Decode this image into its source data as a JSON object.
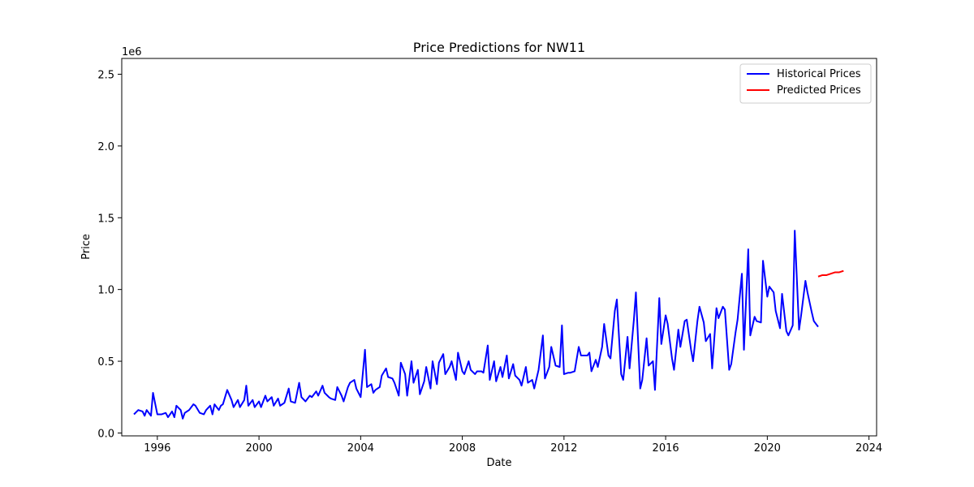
{
  "chart_data": {
    "type": "line",
    "title": "Price Predictions for NW11",
    "xlabel": "Date",
    "ylabel": "Price",
    "y_multiplier_label": "1e6",
    "xlim": [
      1994.6,
      2024.3
    ],
    "ylim": [
      -0.02,
      2.61
    ],
    "x_ticks": [
      1996,
      2000,
      2004,
      2008,
      2012,
      2016,
      2020,
      2024
    ],
    "x_tick_labels": [
      "1996",
      "2000",
      "2004",
      "2008",
      "2012",
      "2016",
      "2020",
      "2024"
    ],
    "y_ticks": [
      0.0,
      0.5,
      1.0,
      1.5,
      2.0,
      2.5
    ],
    "y_tick_labels": [
      "0.0",
      "0.5",
      "1.0",
      "1.5",
      "2.0",
      "2.5"
    ],
    "grid": false,
    "legend_position": "top-right",
    "series": [
      {
        "name": "Historical Prices",
        "color": "#0000ff",
        "points": [
          [
            1995.08,
            0.13
          ],
          [
            1995.25,
            0.16
          ],
          [
            1995.42,
            0.15
          ],
          [
            1995.5,
            0.12
          ],
          [
            1995.58,
            0.16
          ],
          [
            1995.75,
            0.12
          ],
          [
            1995.83,
            0.28
          ],
          [
            1995.92,
            0.2
          ],
          [
            1996.0,
            0.13
          ],
          [
            1996.17,
            0.13
          ],
          [
            1996.33,
            0.14
          ],
          [
            1996.42,
            0.11
          ],
          [
            1996.58,
            0.15
          ],
          [
            1996.67,
            0.11
          ],
          [
            1996.75,
            0.19
          ],
          [
            1996.92,
            0.16
          ],
          [
            1997.0,
            0.1
          ],
          [
            1997.08,
            0.14
          ],
          [
            1997.25,
            0.16
          ],
          [
            1997.42,
            0.2
          ],
          [
            1997.5,
            0.19
          ],
          [
            1997.67,
            0.14
          ],
          [
            1997.83,
            0.13
          ],
          [
            1997.92,
            0.16
          ],
          [
            1998.08,
            0.19
          ],
          [
            1998.17,
            0.13
          ],
          [
            1998.25,
            0.2
          ],
          [
            1998.42,
            0.16
          ],
          [
            1998.5,
            0.19
          ],
          [
            1998.58,
            0.2
          ],
          [
            1998.75,
            0.3
          ],
          [
            1998.92,
            0.23
          ],
          [
            1999.0,
            0.18
          ],
          [
            1999.17,
            0.23
          ],
          [
            1999.25,
            0.18
          ],
          [
            1999.42,
            0.23
          ],
          [
            1999.5,
            0.33
          ],
          [
            1999.58,
            0.19
          ],
          [
            1999.75,
            0.23
          ],
          [
            1999.83,
            0.18
          ],
          [
            2000.0,
            0.22
          ],
          [
            2000.08,
            0.18
          ],
          [
            2000.25,
            0.26
          ],
          [
            2000.33,
            0.22
          ],
          [
            2000.5,
            0.25
          ],
          [
            2000.58,
            0.19
          ],
          [
            2000.75,
            0.24
          ],
          [
            2000.83,
            0.19
          ],
          [
            2001.0,
            0.21
          ],
          [
            2001.17,
            0.31
          ],
          [
            2001.25,
            0.22
          ],
          [
            2001.42,
            0.21
          ],
          [
            2001.58,
            0.35
          ],
          [
            2001.67,
            0.25
          ],
          [
            2001.83,
            0.22
          ],
          [
            2002.0,
            0.26
          ],
          [
            2002.08,
            0.25
          ],
          [
            2002.25,
            0.29
          ],
          [
            2002.33,
            0.26
          ],
          [
            2002.5,
            0.33
          ],
          [
            2002.58,
            0.28
          ],
          [
            2002.75,
            0.25
          ],
          [
            2002.83,
            0.24
          ],
          [
            2003.0,
            0.23
          ],
          [
            2003.08,
            0.32
          ],
          [
            2003.25,
            0.26
          ],
          [
            2003.33,
            0.22
          ],
          [
            2003.5,
            0.32
          ],
          [
            2003.58,
            0.35
          ],
          [
            2003.75,
            0.37
          ],
          [
            2003.83,
            0.31
          ],
          [
            2004.0,
            0.25
          ],
          [
            2004.17,
            0.58
          ],
          [
            2004.25,
            0.32
          ],
          [
            2004.42,
            0.34
          ],
          [
            2004.5,
            0.28
          ],
          [
            2004.58,
            0.3
          ],
          [
            2004.75,
            0.32
          ],
          [
            2004.83,
            0.4
          ],
          [
            2005.0,
            0.45
          ],
          [
            2005.08,
            0.39
          ],
          [
            2005.25,
            0.38
          ],
          [
            2005.33,
            0.35
          ],
          [
            2005.5,
            0.26
          ],
          [
            2005.58,
            0.49
          ],
          [
            2005.75,
            0.41
          ],
          [
            2005.83,
            0.26
          ],
          [
            2006.0,
            0.5
          ],
          [
            2006.08,
            0.35
          ],
          [
            2006.25,
            0.44
          ],
          [
            2006.33,
            0.27
          ],
          [
            2006.5,
            0.36
          ],
          [
            2006.58,
            0.46
          ],
          [
            2006.75,
            0.31
          ],
          [
            2006.83,
            0.5
          ],
          [
            2007.0,
            0.34
          ],
          [
            2007.08,
            0.49
          ],
          [
            2007.25,
            0.55
          ],
          [
            2007.33,
            0.41
          ],
          [
            2007.5,
            0.46
          ],
          [
            2007.58,
            0.5
          ],
          [
            2007.75,
            0.37
          ],
          [
            2007.83,
            0.56
          ],
          [
            2008.0,
            0.43
          ],
          [
            2008.08,
            0.41
          ],
          [
            2008.25,
            0.5
          ],
          [
            2008.33,
            0.44
          ],
          [
            2008.5,
            0.41
          ],
          [
            2008.58,
            0.43
          ],
          [
            2008.75,
            0.43
          ],
          [
            2008.83,
            0.42
          ],
          [
            2009.0,
            0.61
          ],
          [
            2009.08,
            0.37
          ],
          [
            2009.25,
            0.5
          ],
          [
            2009.33,
            0.36
          ],
          [
            2009.5,
            0.46
          ],
          [
            2009.58,
            0.39
          ],
          [
            2009.75,
            0.54
          ],
          [
            2009.83,
            0.38
          ],
          [
            2010.0,
            0.48
          ],
          [
            2010.08,
            0.4
          ],
          [
            2010.25,
            0.37
          ],
          [
            2010.33,
            0.33
          ],
          [
            2010.5,
            0.46
          ],
          [
            2010.58,
            0.35
          ],
          [
            2010.75,
            0.37
          ],
          [
            2010.83,
            0.31
          ],
          [
            2011.0,
            0.44
          ],
          [
            2011.17,
            0.68
          ],
          [
            2011.25,
            0.38
          ],
          [
            2011.42,
            0.46
          ],
          [
            2011.5,
            0.6
          ],
          [
            2011.67,
            0.47
          ],
          [
            2011.83,
            0.46
          ],
          [
            2011.92,
            0.75
          ],
          [
            2012.0,
            0.41
          ],
          [
            2012.17,
            0.42
          ],
          [
            2012.25,
            0.42
          ],
          [
            2012.42,
            0.43
          ],
          [
            2012.58,
            0.6
          ],
          [
            2012.67,
            0.54
          ],
          [
            2012.83,
            0.54
          ],
          [
            2012.92,
            0.54
          ],
          [
            2013.0,
            0.56
          ],
          [
            2013.08,
            0.43
          ],
          [
            2013.25,
            0.51
          ],
          [
            2013.33,
            0.46
          ],
          [
            2013.5,
            0.6
          ],
          [
            2013.58,
            0.76
          ],
          [
            2013.75,
            0.54
          ],
          [
            2013.83,
            0.52
          ],
          [
            2014.0,
            0.85
          ],
          [
            2014.08,
            0.93
          ],
          [
            2014.25,
            0.41
          ],
          [
            2014.33,
            0.37
          ],
          [
            2014.5,
            0.67
          ],
          [
            2014.58,
            0.45
          ],
          [
            2014.75,
            0.79
          ],
          [
            2014.83,
            0.98
          ],
          [
            2015.0,
            0.31
          ],
          [
            2015.08,
            0.37
          ],
          [
            2015.25,
            0.66
          ],
          [
            2015.33,
            0.47
          ],
          [
            2015.5,
            0.5
          ],
          [
            2015.58,
            0.3
          ],
          [
            2015.75,
            0.94
          ],
          [
            2015.83,
            0.62
          ],
          [
            2016.0,
            0.82
          ],
          [
            2016.08,
            0.76
          ],
          [
            2016.25,
            0.52
          ],
          [
            2016.33,
            0.44
          ],
          [
            2016.5,
            0.72
          ],
          [
            2016.58,
            0.6
          ],
          [
            2016.75,
            0.78
          ],
          [
            2016.83,
            0.79
          ],
          [
            2017.0,
            0.58
          ],
          [
            2017.08,
            0.5
          ],
          [
            2017.25,
            0.78
          ],
          [
            2017.33,
            0.88
          ],
          [
            2017.5,
            0.77
          ],
          [
            2017.58,
            0.64
          ],
          [
            2017.75,
            0.69
          ],
          [
            2017.83,
            0.45
          ],
          [
            2018.0,
            0.87
          ],
          [
            2018.08,
            0.8
          ],
          [
            2018.25,
            0.88
          ],
          [
            2018.33,
            0.86
          ],
          [
            2018.5,
            0.44
          ],
          [
            2018.58,
            0.48
          ],
          [
            2018.75,
            0.7
          ],
          [
            2018.83,
            0.79
          ],
          [
            2019.0,
            1.11
          ],
          [
            2019.08,
            0.58
          ],
          [
            2019.25,
            1.28
          ],
          [
            2019.33,
            0.68
          ],
          [
            2019.5,
            0.81
          ],
          [
            2019.58,
            0.78
          ],
          [
            2019.75,
            0.77
          ],
          [
            2019.83,
            1.2
          ],
          [
            2020.0,
            0.95
          ],
          [
            2020.08,
            1.02
          ],
          [
            2020.25,
            0.98
          ],
          [
            2020.33,
            0.85
          ],
          [
            2020.5,
            0.73
          ],
          [
            2020.58,
            0.97
          ],
          [
            2020.75,
            0.71
          ],
          [
            2020.83,
            0.68
          ],
          [
            2021.0,
            0.75
          ],
          [
            2021.08,
            1.41
          ],
          [
            2021.25,
            0.72
          ],
          [
            2021.33,
            0.82
          ],
          [
            2021.5,
            1.06
          ],
          [
            2021.58,
            0.98
          ],
          [
            2021.75,
            0.84
          ],
          [
            2021.83,
            0.78
          ],
          [
            2022.0,
            0.74
          ]
        ]
      },
      {
        "name": "Predicted Prices",
        "color": "#ff0000",
        "points": [
          [
            2022.0,
            1.09
          ],
          [
            2022.17,
            1.1
          ],
          [
            2022.33,
            1.1
          ],
          [
            2022.5,
            1.11
          ],
          [
            2022.67,
            1.12
          ],
          [
            2022.83,
            1.12
          ],
          [
            2023.0,
            1.13
          ]
        ]
      }
    ]
  }
}
